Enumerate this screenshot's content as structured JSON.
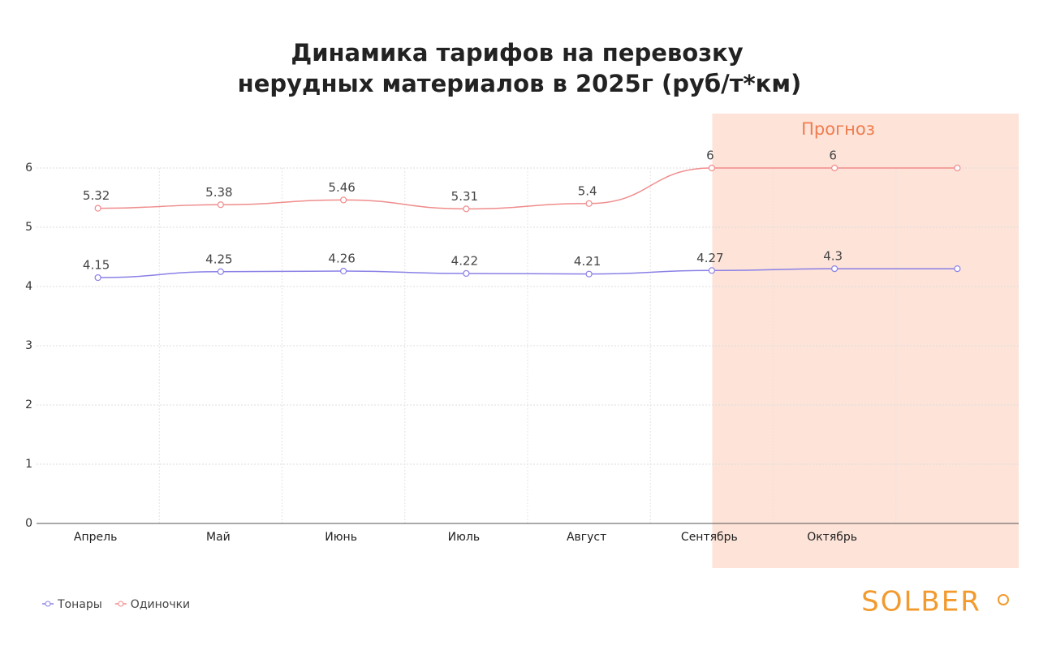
{
  "chart_data": {
    "type": "line",
    "title": [
      "Динамика тарифов на перевозку",
      "нерудных материалов в 2025г (руб/т*км)"
    ],
    "categories": [
      "Апрель",
      "Май",
      "Июнь",
      "Июль",
      "Август",
      "Сентябрь",
      "Октябрь",
      null
    ],
    "series": [
      {
        "name": "Тонары",
        "color": "#8a80e6",
        "values": [
          4.15,
          4.25,
          4.26,
          4.22,
          4.21,
          4.27,
          4.3,
          4.3
        ],
        "value_labels": [
          "4.15",
          "4.25",
          "4.26",
          "4.22",
          "4.21",
          "4.27",
          "4.3",
          null
        ]
      },
      {
        "name": "Одиночки",
        "color": "#f08c8c",
        "values": [
          5.32,
          5.38,
          5.46,
          5.31,
          5.4,
          6,
          6,
          6
        ],
        "value_labels": [
          "5.32",
          "5.38",
          "5.46",
          "5.31",
          "5.4",
          "6",
          "6",
          null
        ]
      }
    ],
    "ylim": [
      0,
      6
    ],
    "yticks": [
      0,
      1,
      2,
      3,
      4,
      5,
      6
    ],
    "grid": true,
    "legend": "bottom-left",
    "annotation": {
      "text": "Прогноз",
      "from_index": 6,
      "color": "#fde3d8",
      "text_color": "#f07d4f"
    },
    "logo": "SOLBER"
  }
}
